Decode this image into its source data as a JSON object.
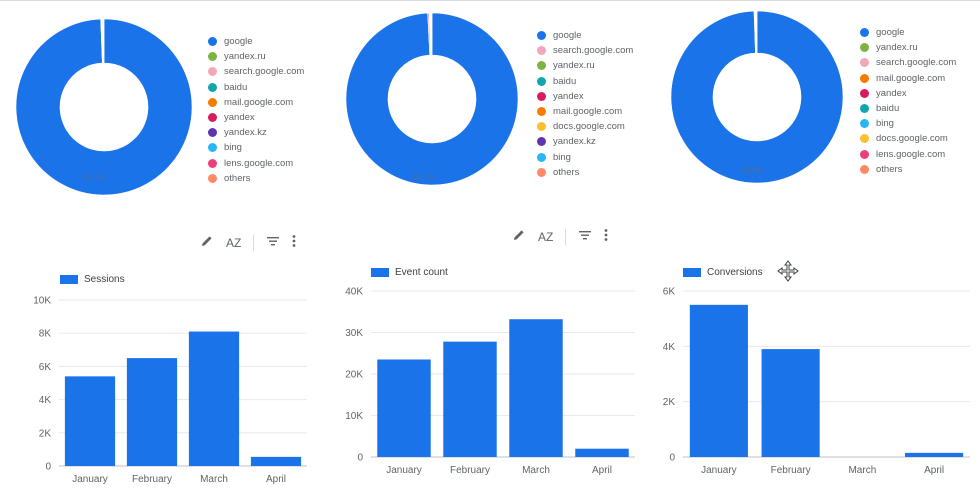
{
  "colors": {
    "primary": "#1a73e8"
  },
  "toolbars": [
    {
      "edit_icon": "pencil-icon",
      "sort_label": "AZ",
      "filter_icon": "filter-icon",
      "more_icon": "more-vert-icon"
    },
    {
      "edit_icon": "pencil-icon",
      "sort_label": "AZ",
      "filter_icon": "filter-icon",
      "more_icon": "more-vert-icon"
    }
  ],
  "chart_data": [
    {
      "type": "pie",
      "donut": true,
      "slice_label": "99.4%",
      "slices": [
        {
          "label": "google",
          "value": 99.4,
          "color": "#1a73e8"
        },
        {
          "label": "yandex.ru",
          "value": 0.1,
          "color": "#7cb342"
        },
        {
          "label": "search.google.com",
          "value": 0.1,
          "color": "#f4a7b9"
        },
        {
          "label": "baidu",
          "value": 0.1,
          "color": "#12a4af"
        },
        {
          "label": "mail.google.com",
          "value": 0.05,
          "color": "#f57c00"
        },
        {
          "label": "yandex",
          "value": 0.05,
          "color": "#d81b60"
        },
        {
          "label": "yandex.kz",
          "value": 0.05,
          "color": "#5e35b1"
        },
        {
          "label": "bing",
          "value": 0.05,
          "color": "#29b6f6"
        },
        {
          "label": "lens.google.com",
          "value": 0.05,
          "color": "#ec407a"
        },
        {
          "label": "others",
          "value": 0.05,
          "color": "#ff8a65"
        }
      ]
    },
    {
      "type": "pie",
      "donut": true,
      "slice_label": "99.2%",
      "slices": [
        {
          "label": "google",
          "value": 99.2,
          "color": "#1a73e8"
        },
        {
          "label": "search.google.com",
          "value": 0.3,
          "color": "#f4a7b9"
        },
        {
          "label": "yandex.ru",
          "value": 0.1,
          "color": "#7cb342"
        },
        {
          "label": "baidu",
          "value": 0.1,
          "color": "#12a4af"
        },
        {
          "label": "yandex",
          "value": 0.05,
          "color": "#d81b60"
        },
        {
          "label": "mail.google.com",
          "value": 0.05,
          "color": "#f57c00"
        },
        {
          "label": "docs.google.com",
          "value": 0.05,
          "color": "#fbc02d"
        },
        {
          "label": "yandex.kz",
          "value": 0.05,
          "color": "#5e35b1"
        },
        {
          "label": "bing",
          "value": 0.05,
          "color": "#29b6f6"
        },
        {
          "label": "others",
          "value": 0.05,
          "color": "#ff8a65"
        }
      ]
    },
    {
      "type": "pie",
      "donut": true,
      "slice_label": "99.4%",
      "slices": [
        {
          "label": "google",
          "value": 99.4,
          "color": "#1a73e8"
        },
        {
          "label": "yandex.ru",
          "value": 0.1,
          "color": "#7cb342"
        },
        {
          "label": "search.google.com",
          "value": 0.1,
          "color": "#f4a7b9"
        },
        {
          "label": "mail.google.com",
          "value": 0.05,
          "color": "#f57c00"
        },
        {
          "label": "yandex",
          "value": 0.05,
          "color": "#d81b60"
        },
        {
          "label": "baidu",
          "value": 0.05,
          "color": "#12a4af"
        },
        {
          "label": "bing",
          "value": 0.05,
          "color": "#29b6f6"
        },
        {
          "label": "docs.google.com",
          "value": 0.05,
          "color": "#fbc02d"
        },
        {
          "label": "lens.google.com",
          "value": 0.05,
          "color": "#ec407a"
        },
        {
          "label": "others",
          "value": 0.05,
          "color": "#ff8a65"
        }
      ]
    },
    {
      "type": "bar",
      "series": [
        {
          "name": "Sessions",
          "values": [
            5400,
            6500,
            8100,
            550
          ]
        }
      ],
      "categories": [
        "January",
        "February",
        "March",
        "April"
      ],
      "ylim": [
        0,
        10000
      ],
      "yticks": [
        0,
        2000,
        4000,
        6000,
        8000,
        10000
      ],
      "ytick_labels": [
        "0",
        "2K",
        "4K",
        "6K",
        "8K",
        "10K"
      ],
      "grid": true,
      "legend": "top-left"
    },
    {
      "type": "bar",
      "series": [
        {
          "name": "Event count",
          "values": [
            23500,
            27800,
            33200,
            2000
          ]
        }
      ],
      "categories": [
        "January",
        "February",
        "March",
        "April"
      ],
      "ylim": [
        0,
        40000
      ],
      "yticks": [
        0,
        10000,
        20000,
        30000,
        40000
      ],
      "ytick_labels": [
        "0",
        "10K",
        "20K",
        "30K",
        "40K"
      ],
      "grid": true,
      "legend": "top-left"
    },
    {
      "type": "bar",
      "series": [
        {
          "name": "Conversions",
          "values": [
            5500,
            3900,
            0,
            150
          ]
        }
      ],
      "categories": [
        "January",
        "February",
        "March",
        "April"
      ],
      "ylim": [
        0,
        6000
      ],
      "yticks": [
        0,
        2000,
        4000,
        6000
      ],
      "ytick_labels": [
        "0",
        "2K",
        "4K",
        "6K"
      ],
      "grid": true,
      "legend": "top-left"
    }
  ]
}
